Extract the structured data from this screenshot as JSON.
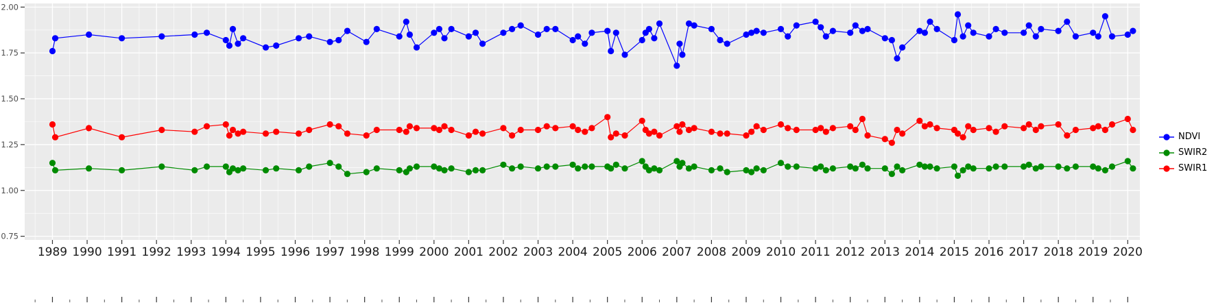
{
  "chart_data": {
    "type": "scatter",
    "title": "",
    "xlabel": "",
    "ylabel": "",
    "grid": true,
    "legend_position": "right",
    "panel_bg": "#EBEBEB",
    "grid_color": "#FFFFFF",
    "figure_bg": "#FFFFFF",
    "xlim": [
      1988.2,
      2020.35
    ],
    "ylim": [
      0.73,
      2.02
    ],
    "x_ticks": [
      1989,
      1990,
      1991,
      1992,
      1993,
      1994,
      1995,
      1996,
      1997,
      1998,
      1999,
      2000,
      2001,
      2002,
      2003,
      2004,
      2005,
      2006,
      2007,
      2008,
      2009,
      2010,
      2011,
      2012,
      2013,
      2014,
      2015,
      2016,
      2017,
      2018,
      2019,
      2020
    ],
    "y_tick_labels": [
      "2.00",
      "1.75",
      "1.50",
      "1.25",
      "1.00",
      "0.75"
    ],
    "y_tick_values": [
      2.0,
      1.75,
      1.5,
      1.25,
      1.0,
      0.75
    ],
    "x": [
      1989.0,
      1989.08,
      1990.05,
      1991.0,
      1992.15,
      1993.1,
      1993.45,
      1994.0,
      1994.1,
      1994.2,
      1994.35,
      1994.5,
      1995.15,
      1995.45,
      1996.1,
      1996.4,
      1997.0,
      1997.25,
      1997.5,
      1998.05,
      1998.35,
      1999.0,
      1999.2,
      1999.3,
      1999.5,
      2000.0,
      2000.15,
      2000.3,
      2000.5,
      2001.0,
      2001.2,
      2001.4,
      2002.0,
      2002.25,
      2002.5,
      2003.0,
      2003.25,
      2003.5,
      2004.0,
      2004.15,
      2004.35,
      2004.55,
      2005.0,
      2005.1,
      2005.25,
      2005.5,
      2006.0,
      2006.1,
      2006.2,
      2006.35,
      2006.5,
      2007.0,
      2007.08,
      2007.16,
      2007.35,
      2007.5,
      2008.0,
      2008.25,
      2008.45,
      2009.0,
      2009.15,
      2009.3,
      2009.5,
      2010.0,
      2010.2,
      2010.45,
      2011.0,
      2011.15,
      2011.3,
      2011.5,
      2012.0,
      2012.15,
      2012.35,
      2012.5,
      2013.0,
      2013.2,
      2013.35,
      2013.5,
      2014.0,
      2014.15,
      2014.3,
      2014.5,
      2015.0,
      2015.1,
      2015.25,
      2015.4,
      2015.55,
      2016.0,
      2016.2,
      2016.45,
      2017.0,
      2017.15,
      2017.35,
      2017.5,
      2018.0,
      2018.25,
      2018.5,
      2019.0,
      2019.15,
      2019.35,
      2019.55,
      2020.0,
      2020.15
    ],
    "series": [
      {
        "name": "NDVI",
        "color": "#0000FF",
        "values": [
          1.76,
          1.83,
          1.85,
          1.83,
          1.84,
          1.85,
          1.86,
          1.82,
          1.79,
          1.88,
          1.8,
          1.83,
          1.78,
          1.79,
          1.83,
          1.84,
          1.81,
          1.82,
          1.87,
          1.81,
          1.88,
          1.84,
          1.92,
          1.85,
          1.78,
          1.86,
          1.88,
          1.83,
          1.88,
          1.84,
          1.86,
          1.8,
          1.86,
          1.88,
          1.9,
          1.85,
          1.88,
          1.88,
          1.82,
          1.84,
          1.8,
          1.86,
          1.87,
          1.76,
          1.86,
          1.74,
          1.82,
          1.86,
          1.88,
          1.83,
          1.91,
          1.68,
          1.8,
          1.74,
          1.91,
          1.9,
          1.88,
          1.82,
          1.8,
          1.85,
          1.86,
          1.87,
          1.86,
          1.88,
          1.84,
          1.9,
          1.92,
          1.89,
          1.84,
          1.87,
          1.86,
          1.9,
          1.87,
          1.88,
          1.83,
          1.82,
          1.72,
          1.78,
          1.87,
          1.86,
          1.92,
          1.88,
          1.82,
          1.96,
          1.84,
          1.9,
          1.86,
          1.84,
          1.88,
          1.86,
          1.86,
          1.9,
          1.84,
          1.88,
          1.87,
          1.92,
          1.84,
          1.86,
          1.84,
          1.95,
          1.84,
          1.85,
          1.87
        ]
      },
      {
        "name": "SWIR2",
        "color": "#008B00",
        "values": [
          1.15,
          1.11,
          1.12,
          1.11,
          1.13,
          1.11,
          1.13,
          1.13,
          1.1,
          1.12,
          1.11,
          1.12,
          1.11,
          1.12,
          1.11,
          1.13,
          1.15,
          1.13,
          1.09,
          1.1,
          1.12,
          1.11,
          1.1,
          1.12,
          1.13,
          1.13,
          1.12,
          1.11,
          1.12,
          1.1,
          1.11,
          1.11,
          1.14,
          1.12,
          1.13,
          1.12,
          1.13,
          1.13,
          1.14,
          1.12,
          1.13,
          1.13,
          1.13,
          1.12,
          1.14,
          1.12,
          1.16,
          1.13,
          1.11,
          1.12,
          1.11,
          1.16,
          1.13,
          1.15,
          1.12,
          1.13,
          1.11,
          1.12,
          1.1,
          1.11,
          1.1,
          1.12,
          1.11,
          1.15,
          1.13,
          1.13,
          1.12,
          1.13,
          1.11,
          1.12,
          1.13,
          1.12,
          1.14,
          1.12,
          1.12,
          1.09,
          1.13,
          1.11,
          1.14,
          1.13,
          1.13,
          1.12,
          1.13,
          1.08,
          1.11,
          1.13,
          1.12,
          1.12,
          1.13,
          1.13,
          1.13,
          1.14,
          1.12,
          1.13,
          1.13,
          1.12,
          1.13,
          1.13,
          1.12,
          1.11,
          1.13,
          1.16,
          1.12
        ]
      },
      {
        "name": "SWIR1",
        "color": "#FF0000",
        "values": [
          1.36,
          1.29,
          1.34,
          1.29,
          1.33,
          1.32,
          1.35,
          1.36,
          1.3,
          1.33,
          1.31,
          1.32,
          1.31,
          1.32,
          1.31,
          1.33,
          1.36,
          1.35,
          1.31,
          1.3,
          1.33,
          1.33,
          1.32,
          1.35,
          1.34,
          1.34,
          1.33,
          1.35,
          1.33,
          1.3,
          1.32,
          1.31,
          1.34,
          1.3,
          1.33,
          1.33,
          1.35,
          1.34,
          1.35,
          1.33,
          1.32,
          1.34,
          1.4,
          1.29,
          1.31,
          1.3,
          1.38,
          1.33,
          1.31,
          1.32,
          1.3,
          1.35,
          1.32,
          1.36,
          1.33,
          1.34,
          1.32,
          1.31,
          1.31,
          1.3,
          1.32,
          1.35,
          1.33,
          1.36,
          1.34,
          1.33,
          1.33,
          1.34,
          1.32,
          1.34,
          1.35,
          1.33,
          1.39,
          1.3,
          1.28,
          1.26,
          1.33,
          1.31,
          1.38,
          1.35,
          1.36,
          1.34,
          1.33,
          1.31,
          1.29,
          1.35,
          1.33,
          1.34,
          1.32,
          1.35,
          1.34,
          1.36,
          1.33,
          1.35,
          1.36,
          1.3,
          1.33,
          1.34,
          1.35,
          1.33,
          1.36,
          1.39,
          1.33
        ]
      }
    ]
  },
  "legend": {
    "items": [
      {
        "label": "NDVI",
        "color": "#0000FF"
      },
      {
        "label": "SWIR2",
        "color": "#008B00"
      },
      {
        "label": "SWIR1",
        "color": "#FF0000"
      }
    ]
  }
}
